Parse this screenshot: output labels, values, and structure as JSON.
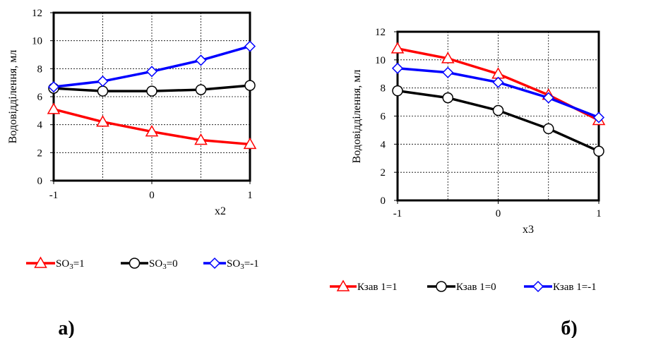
{
  "chart_data": [
    {
      "type": "line",
      "panel_label": "а)",
      "x": [
        -1,
        -0.5,
        0,
        0.5,
        1
      ],
      "xticks": [
        "-1",
        "0",
        "1"
      ],
      "xtick_values": [
        -1,
        0,
        1
      ],
      "yticks": [
        "0",
        "2",
        "4",
        "6",
        "8",
        "10",
        "12"
      ],
      "ytick_values": [
        0,
        2,
        4,
        6,
        8,
        10,
        12
      ],
      "xlim": [
        -1,
        1
      ],
      "ylim": [
        0,
        12
      ],
      "xlabel": "x2",
      "ylabel": "Водовідділення, мл",
      "grid": true,
      "legend_position": "bottom",
      "series": [
        {
          "name": "SO3=1",
          "name_main": "SO",
          "name_sub": "3",
          "name_rest": "=1",
          "marker": "triangle",
          "color": "#ff0000",
          "values": [
            5.1,
            4.2,
            3.5,
            2.9,
            2.6
          ]
        },
        {
          "name": "SO3=0",
          "name_main": "SO",
          "name_sub": "3",
          "name_rest": "=0",
          "marker": "circle",
          "color": "#000000",
          "values": [
            6.6,
            6.4,
            6.4,
            6.5,
            6.8
          ]
        },
        {
          "name": "SO3=-1",
          "name_main": "SO",
          "name_sub": "3",
          "name_rest": "=-1",
          "marker": "diamond",
          "color": "#0000ff",
          "values": [
            6.7,
            7.1,
            7.8,
            8.6,
            9.6
          ]
        }
      ]
    },
    {
      "type": "line",
      "panel_label": "б)",
      "x": [
        -1,
        -0.5,
        0,
        0.5,
        1
      ],
      "xticks": [
        "-1",
        "0",
        "1"
      ],
      "xtick_values": [
        -1,
        0,
        1
      ],
      "yticks": [
        "0",
        "2",
        "4",
        "6",
        "8",
        "10",
        "12"
      ],
      "ytick_values": [
        0,
        2,
        4,
        6,
        8,
        10,
        12
      ],
      "xlim": [
        -1,
        1
      ],
      "ylim": [
        0,
        12
      ],
      "xlabel": "x3",
      "ylabel": "Водовідділення, мл",
      "grid": true,
      "legend_position": "bottom",
      "series": [
        {
          "name": "Кзав 1=1",
          "name_main": "Кзав 1=1",
          "name_sub": "",
          "name_rest": "",
          "marker": "triangle",
          "color": "#ff0000",
          "values": [
            10.8,
            10.1,
            9.0,
            7.5,
            5.7
          ]
        },
        {
          "name": "Кзав 1=0",
          "name_main": "Кзав 1=0",
          "name_sub": "",
          "name_rest": "",
          "marker": "circle",
          "color": "#000000",
          "values": [
            7.8,
            7.3,
            6.4,
            5.1,
            3.5
          ]
        },
        {
          "name": "Кзав 1=-1",
          "name_main": "Кзав 1=-1",
          "name_sub": "",
          "name_rest": "",
          "marker": "diamond",
          "color": "#0000ff",
          "values": [
            9.4,
            9.1,
            8.4,
            7.3,
            5.9
          ]
        }
      ]
    }
  ]
}
